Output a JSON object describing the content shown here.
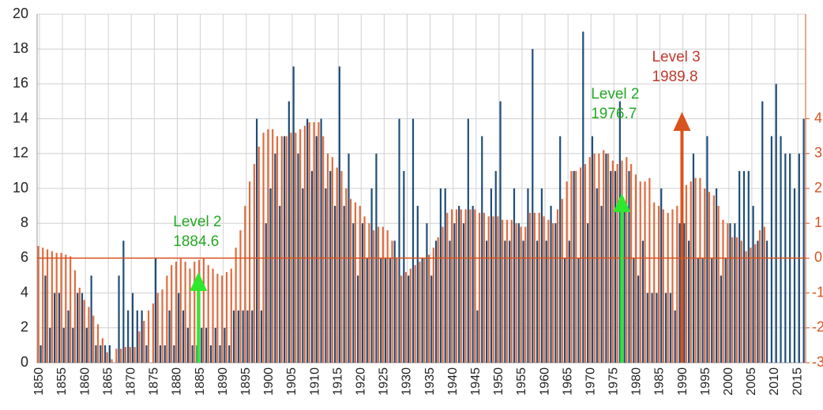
{
  "chart_data": {
    "type": "bar",
    "x": [
      1850,
      1851,
      1852,
      1853,
      1854,
      1855,
      1856,
      1857,
      1858,
      1859,
      1860,
      1861,
      1862,
      1863,
      1864,
      1865,
      1866,
      1867,
      1868,
      1869,
      1870,
      1871,
      1872,
      1873,
      1874,
      1875,
      1876,
      1877,
      1878,
      1879,
      1880,
      1881,
      1882,
      1883,
      1884,
      1885,
      1886,
      1887,
      1888,
      1889,
      1890,
      1891,
      1892,
      1893,
      1894,
      1895,
      1896,
      1897,
      1898,
      1899,
      1900,
      1901,
      1902,
      1903,
      1904,
      1905,
      1906,
      1907,
      1908,
      1909,
      1910,
      1911,
      1912,
      1913,
      1914,
      1915,
      1916,
      1917,
      1918,
      1919,
      1920,
      1921,
      1922,
      1923,
      1924,
      1925,
      1926,
      1927,
      1928,
      1929,
      1930,
      1931,
      1932,
      1933,
      1934,
      1935,
      1936,
      1937,
      1938,
      1939,
      1940,
      1941,
      1942,
      1943,
      1944,
      1945,
      1946,
      1947,
      1948,
      1949,
      1950,
      1951,
      1952,
      1953,
      1954,
      1955,
      1956,
      1957,
      1958,
      1959,
      1960,
      1961,
      1962,
      1963,
      1964,
      1965,
      1966,
      1967,
      1968,
      1969,
      1970,
      1971,
      1972,
      1973,
      1974,
      1975,
      1976,
      1977,
      1978,
      1979,
      1980,
      1981,
      1982,
      1983,
      1984,
      1985,
      1986,
      1987,
      1988,
      1989,
      1990,
      1991,
      1992,
      1993,
      1994,
      1995,
      1996,
      1997,
      1998,
      1999,
      2000,
      2001,
      2002,
      2003,
      2004,
      2005,
      2006,
      2007,
      2008,
      2009,
      2010,
      2011,
      2012,
      2013,
      2014,
      2015,
      2016
    ],
    "series": [
      {
        "color": "#1f4e79",
        "values": [
          1,
          5,
          2,
          4,
          4,
          2,
          3,
          2,
          4,
          4,
          2,
          5,
          1,
          1,
          1,
          1,
          0,
          5,
          7,
          3,
          4,
          3,
          3,
          1,
          0,
          6,
          1,
          1,
          3,
          1,
          4,
          3,
          2,
          1,
          1,
          2,
          2,
          1,
          2,
          1,
          2,
          1,
          3,
          3,
          3,
          3,
          3,
          14,
          3,
          8,
          10,
          12,
          9,
          13,
          15,
          17,
          12,
          10,
          14,
          11,
          13,
          14,
          10,
          11,
          9,
          17,
          9,
          12,
          8,
          5,
          8,
          6,
          10,
          12,
          6,
          6,
          6,
          7,
          14,
          11,
          5,
          14,
          9,
          6,
          8,
          5,
          7,
          10,
          10,
          7,
          8,
          9,
          8,
          14,
          9,
          3,
          13,
          7,
          10,
          11,
          15,
          7,
          7,
          10,
          8,
          7,
          10,
          18,
          7,
          10,
          7,
          9,
          8,
          13,
          6,
          7,
          11,
          6,
          19,
          8,
          13,
          10,
          9,
          12,
          11,
          11,
          15,
          9,
          11,
          6,
          5,
          7,
          4,
          4,
          4,
          10,
          4,
          4,
          3,
          8,
          8,
          7,
          12,
          6,
          6,
          13,
          6,
          10,
          5,
          6,
          8,
          8,
          11,
          11,
          11,
          9,
          7,
          15,
          7,
          13,
          16,
          13,
          12,
          12,
          10,
          12,
          14
        ]
      },
      {
        "color": "#d9531e",
        "axis": "y2",
        "values": [
          0.35,
          0.3,
          0.25,
          0.2,
          0.15,
          0.15,
          0.1,
          0.05,
          -0.35,
          -0.85,
          -1.2,
          -1.4,
          -1.65,
          -1.9,
          -2.3,
          -2.7,
          -2.9,
          -2.6,
          -2.6,
          -2.55,
          -2.55,
          -2.55,
          -2.1,
          -1.8,
          -1.5,
          -1.3,
          -1.0,
          -0.9,
          -0.5,
          -0.2,
          -0.1,
          0,
          -0.1,
          -0.3,
          -0.1,
          -0.05,
          0,
          -0.2,
          -0.3,
          -0.45,
          -0.5,
          -0.4,
          -0.3,
          0.3,
          0.8,
          1.5,
          2.2,
          2.7,
          3.2,
          3.6,
          3.7,
          3.7,
          3.5,
          3.5,
          3.5,
          3.6,
          3.6,
          3.7,
          3.8,
          3.9,
          3.9,
          3.9,
          3.5,
          3.0,
          2.9,
          2.6,
          2.5,
          2.0,
          1.7,
          1.6,
          1.5,
          1.2,
          1.0,
          0.8,
          0.9,
          0.9,
          0.8,
          0.5,
          0,
          -0.5,
          -0.4,
          -0.3,
          -0.2,
          -0.1,
          0,
          0.1,
          0.3,
          0.6,
          0.9,
          1.3,
          1.4,
          1.4,
          1.4,
          1.4,
          1.4,
          1.4,
          1.3,
          1.3,
          1.2,
          1.2,
          1.2,
          1.1,
          1.1,
          1.1,
          1.0,
          0.9,
          0.9,
          1.3,
          1.3,
          1.3,
          1.2,
          1.1,
          1.0,
          1.4,
          1.7,
          2.2,
          2.5,
          2.5,
          2.6,
          2.7,
          2.9,
          3.0,
          3.0,
          3.1,
          3.0,
          2.8,
          2.7,
          2.8,
          2.9,
          2.7,
          2.4,
          2.2,
          2.2,
          2.3,
          1.6,
          1.5,
          1.4,
          1.3,
          1.4,
          1.5,
          2.0,
          2.1,
          2.2,
          2.3,
          2.3,
          2.0,
          1.9,
          1.8,
          1.5,
          1.1,
          1.0,
          0.6,
          0.6,
          0.5,
          0.2,
          0.3,
          0.4,
          0.8,
          0.9,
          null,
          null,
          null,
          null,
          null,
          null,
          null,
          null
        ]
      }
    ],
    "xlim": [
      1849.5,
      2016.7
    ],
    "xticks": [
      1850,
      1855,
      1860,
      1865,
      1870,
      1875,
      1880,
      1885,
      1890,
      1895,
      1900,
      1905,
      1910,
      1915,
      1920,
      1925,
      1930,
      1935,
      1940,
      1945,
      1950,
      1955,
      1960,
      1965,
      1970,
      1975,
      1980,
      1985,
      1990,
      1995,
      2000,
      2005,
      2010,
      2015
    ],
    "ylim": [
      0,
      20
    ],
    "yticks": [
      0,
      2,
      4,
      6,
      8,
      10,
      12,
      14,
      16,
      18,
      20
    ],
    "y2lim": [
      -3,
      7
    ],
    "y2ticks": [
      -3,
      -2,
      -1,
      0,
      1,
      2,
      3,
      4
    ],
    "y2_color": "#d9531e",
    "y2_reference_line": 0,
    "grid": true,
    "annotations": [
      {
        "label": "Level 2",
        "x": 1884.6,
        "color": "#22aa22",
        "arrow_color": "#2ee82e"
      },
      {
        "label": "Level 2",
        "x": 1976.7,
        "color": "#22aa22",
        "arrow_color": "#2ee82e"
      },
      {
        "label": "Level 3",
        "x": 1989.8,
        "color": "#c0392b",
        "arrow_color": "#d9531e"
      }
    ]
  }
}
